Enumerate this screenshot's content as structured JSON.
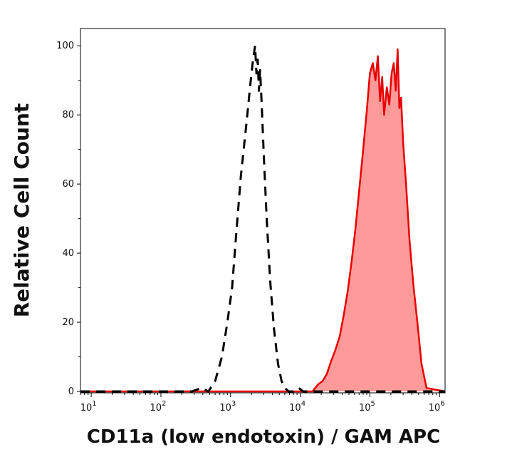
{
  "chart_data": {
    "type": "line",
    "title": "",
    "xlabel": "CD11a (low endotoxin) / GAM APC",
    "ylabel": "Relative Cell Count",
    "x_scale": "log",
    "xlim": [
      7,
      1200000
    ],
    "ylim": [
      0,
      105
    ],
    "grid": false,
    "legend": "none",
    "x_ticks": [
      {
        "value": 10,
        "base": "10",
        "exp": "1"
      },
      {
        "value": 100,
        "base": "10",
        "exp": "2"
      },
      {
        "value": 1000,
        "base": "10",
        "exp": "3"
      },
      {
        "value": 10000,
        "base": "10",
        "exp": "4"
      },
      {
        "value": 100000,
        "base": "10",
        "exp": "5"
      },
      {
        "value": 1000000,
        "base": "10",
        "exp": "6"
      }
    ],
    "y_ticks": [
      0,
      20,
      40,
      60,
      80,
      100
    ],
    "series": [
      {
        "style": "dashed",
        "color": "#000000",
        "fill": "none",
        "x": [
          7,
          280,
          380,
          480,
          600,
          750,
          900,
          1050,
          1200,
          1400,
          1700,
          1900,
          2100,
          2250,
          2350,
          2450,
          2550,
          2650,
          2800,
          3000,
          3300,
          3700,
          4200,
          4800,
          5400,
          6000,
          6800,
          8000,
          9500,
          11000,
          14000,
          20000,
          1200000
        ],
        "y": [
          0,
          0,
          1,
          0,
          3,
          10,
          20,
          30,
          45,
          62,
          78,
          88,
          96,
          100,
          92,
          96,
          87,
          93,
          83,
          68,
          50,
          32,
          18,
          8,
          3,
          1,
          0,
          0,
          1,
          0,
          0,
          0,
          0
        ]
      },
      {
        "style": "solid",
        "color": "#e80000",
        "fill": "#ff9a9a",
        "x": [
          7,
          15000,
          18000,
          21000,
          24000,
          28000,
          32000,
          37000,
          42000,
          48000,
          55000,
          62000,
          70000,
          80000,
          90000,
          100000,
          110000,
          120000,
          130000,
          140000,
          150000,
          160000,
          175000,
          190000,
          205000,
          220000,
          235000,
          250000,
          265000,
          280000,
          300000,
          330000,
          370000,
          420000,
          480000,
          550000,
          650000,
          1200000
        ],
        "y": [
          0,
          0,
          2,
          3,
          5,
          9,
          12,
          16,
          22,
          29,
          38,
          47,
          58,
          70,
          81,
          92,
          95,
          90,
          97,
          84,
          91,
          80,
          88,
          83,
          92,
          95,
          87,
          99,
          82,
          85,
          72,
          60,
          44,
          31,
          20,
          8,
          1,
          0
        ]
      }
    ]
  }
}
